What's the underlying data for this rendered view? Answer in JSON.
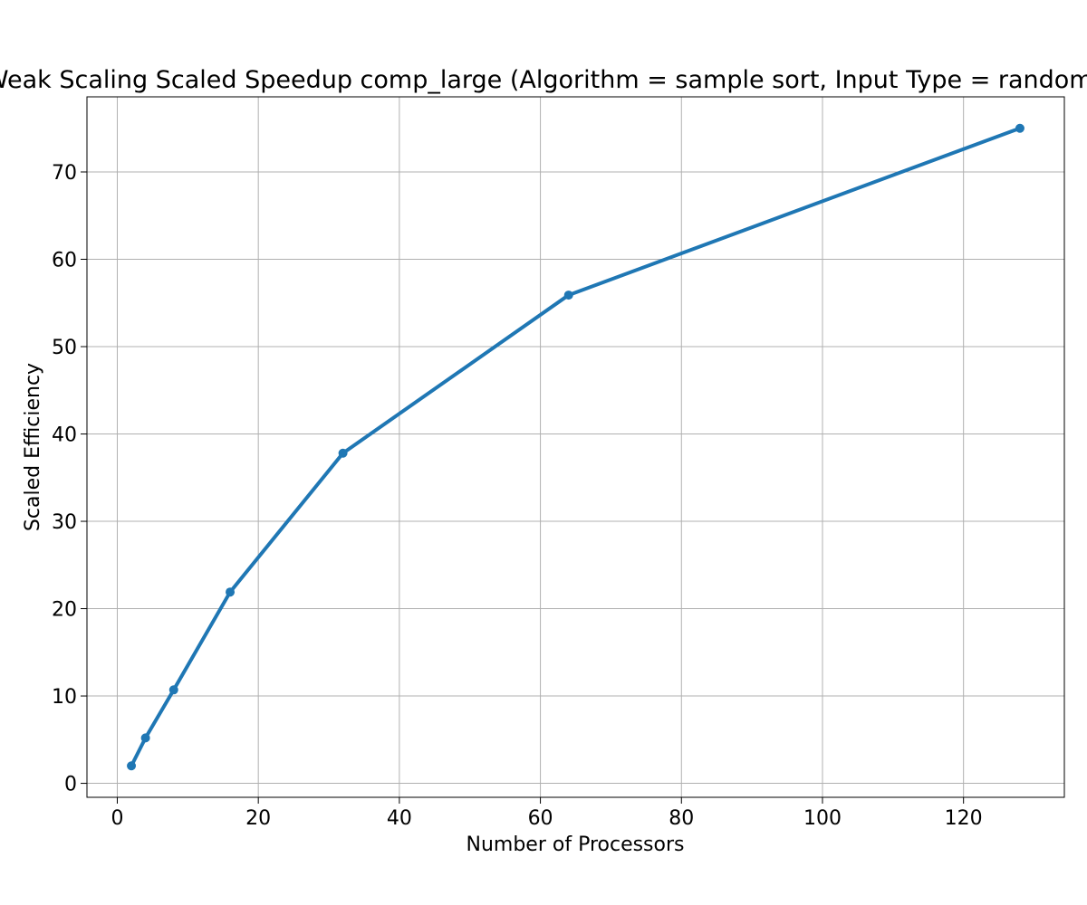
{
  "chart_data": {
    "type": "line",
    "title": "Weak Scaling Scaled Speedup comp_large (Algorithm = sample sort, Input Type = random)",
    "xlabel": "Number of Processors",
    "ylabel": "Scaled Efficiency",
    "xlim": [
      -4.3,
      134.3
    ],
    "ylim": [
      -1.6,
      78.6
    ],
    "xticks": [
      0,
      20,
      40,
      60,
      80,
      100,
      120
    ],
    "yticks": [
      0,
      10,
      20,
      30,
      40,
      50,
      60,
      70
    ],
    "grid": true,
    "legend": "none",
    "series": [
      {
        "color": "#1f77b4",
        "marker": "circle",
        "x": [
          2,
          4,
          8,
          16,
          32,
          64,
          128
        ],
        "y": [
          2.0,
          5.2,
          10.7,
          21.9,
          37.8,
          55.9,
          75.0
        ]
      }
    ]
  }
}
